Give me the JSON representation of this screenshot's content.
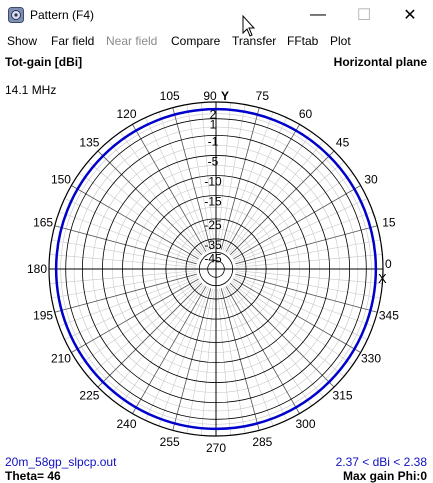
{
  "window": {
    "title": "Pattern   (F4)",
    "minimize_glyph": "—",
    "maximize_glyph": "☐",
    "close_glyph": "✕"
  },
  "menu": {
    "items": [
      {
        "label": "Show",
        "enabled": true
      },
      {
        "label": "Far field",
        "enabled": true
      },
      {
        "label": "Near field",
        "enabled": false
      },
      {
        "label": "Compare",
        "enabled": true
      },
      {
        "label": "Transfer",
        "enabled": true
      },
      {
        "label": "FFtab",
        "enabled": true
      },
      {
        "label": "Plot",
        "enabled": true
      }
    ]
  },
  "plot": {
    "top_left": "Tot-gain [dBi]",
    "top_right": "Horizontal plane",
    "frequency": "14.1 MHz",
    "bottom_left_file": "20m_58gp_slpcp.out",
    "bottom_right_range": "2.37 < dBi < 2.38",
    "theta_label": "Theta= 46",
    "max_gain_label": "Max gain Phi:0",
    "y_axis_label": "Y",
    "x_axis_marker": "X"
  },
  "chart_data": {
    "type": "polar",
    "title": "Horizontal plane",
    "quantity": "Tot-gain [dBi]",
    "angle_labels": [
      "0",
      "15",
      "30",
      "45",
      "60",
      "75",
      "90",
      "105",
      "120",
      "135",
      "150",
      "165",
      "180",
      "195",
      "210",
      "225",
      "240",
      "255",
      "270",
      "285",
      "300",
      "315",
      "330",
      "345"
    ],
    "radial_ticks": [
      "2",
      "1",
      "-1",
      "-5",
      "-10",
      "-15",
      "-25",
      "-35",
      "-45"
    ],
    "radial_tick_values": [
      2,
      1,
      -1,
      -5,
      -10,
      -15,
      -25,
      -35,
      -45
    ],
    "series": [
      {
        "values_dbi": [
          2.37,
          2.38
        ],
        "color": "#0000cc"
      }
    ],
    "pattern": "omnidirectional",
    "min_dbi": 2.37,
    "max_dbi": 2.38
  }
}
